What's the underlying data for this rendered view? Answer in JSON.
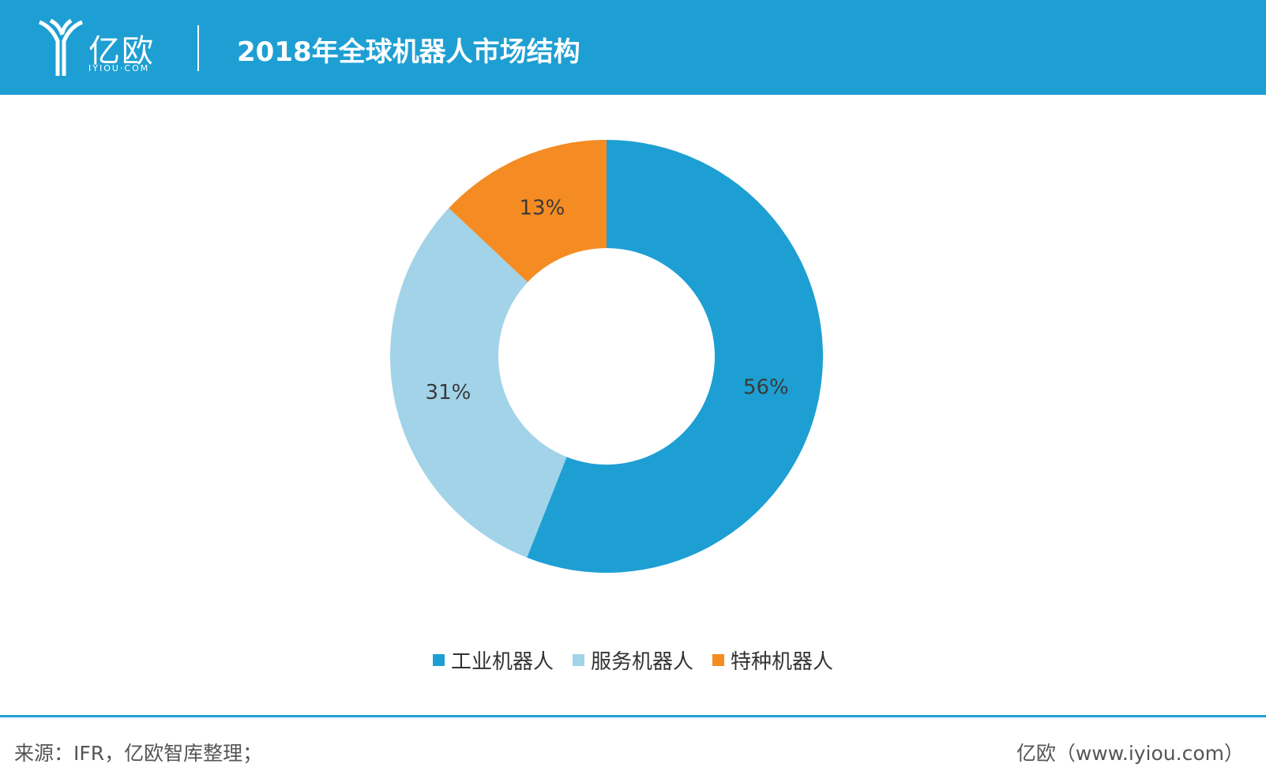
{
  "header": {
    "logo_text": "亿欧",
    "logo_sub": "IYIOU·COM",
    "title": "2018年全球机器人市场结构"
  },
  "chart_data": {
    "type": "pie",
    "variant": "donut",
    "title": "2018年全球机器人市场结构",
    "categories": [
      "工业机器人",
      "服务机器人",
      "特种机器人"
    ],
    "values": [
      56,
      31,
      13
    ],
    "labels": [
      "56%",
      "31%",
      "13%"
    ],
    "colors": [
      "#1e9fd3",
      "#a2d3e8",
      "#f48c23"
    ],
    "legend_position": "bottom"
  },
  "footer": {
    "source": "来源：IFR，亿欧智库整理；",
    "site": "亿欧（www.iyiou.com）"
  },
  "colors": {
    "accent": "#1e9fd3",
    "text": "#333333"
  }
}
